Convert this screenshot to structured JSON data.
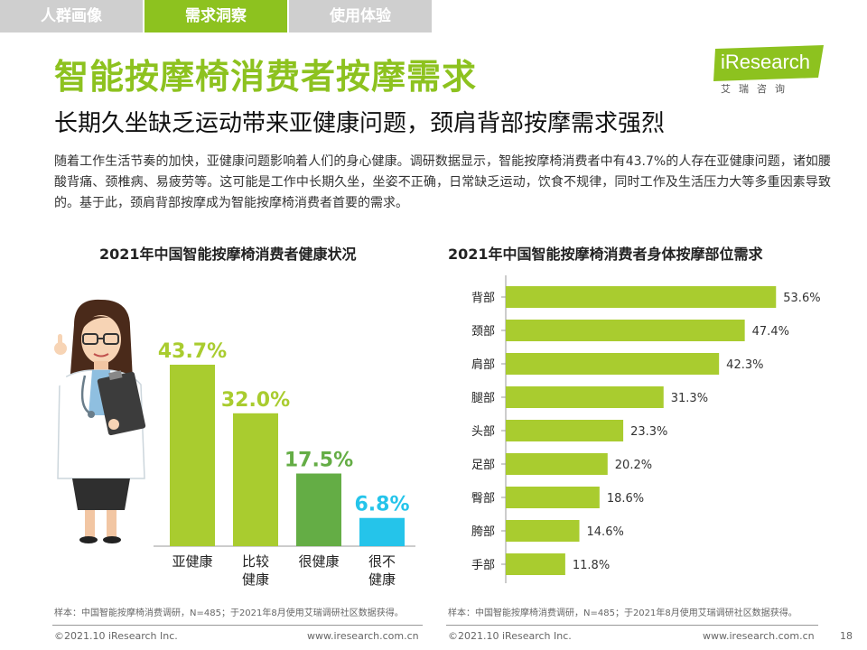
{
  "tabs": [
    {
      "label": "人群画像"
    },
    {
      "label": "需求洞察"
    },
    {
      "label": "使用体验"
    }
  ],
  "header": {
    "title": "智能按摩椅消费者按摩需求",
    "subtitle": "长期久坐缺乏运动带来亚健康问题，颈肩背部按摩需求强烈",
    "logo": "iResearch",
    "logo_sub": "艾瑞咨询"
  },
  "description": "随着工作生活节奏的加快，亚健康问题影响着人们的身心健康。调研数据显示，智能按摩椅消费者中有43.7%的人存在亚健康问题，诸如腰酸背痛、颈椎病、易疲劳等。这可能是工作中长期久坐，坐姿不正确，日常缺乏运动，饮食不规律，同时工作及生活压力大等多重因素导致的。基于此，颈肩背部按摩成为智能按摩椅消费者首要的需求。",
  "chart_data": [
    {
      "type": "bar",
      "title": "2021年中国智能按摩椅消费者健康状况",
      "categories": [
        "亚健康",
        "比较健康",
        "很健康",
        "很不健康"
      ],
      "category_lines": [
        [
          "亚健康"
        ],
        [
          "比较",
          "健康"
        ],
        [
          "很健康"
        ],
        [
          "很不",
          "健康"
        ]
      ],
      "values": [
        43.7,
        32.0,
        17.5,
        6.8
      ],
      "value_labels": [
        "43.7%",
        "32.0%",
        "17.5%",
        "6.8%"
      ],
      "colors": [
        "#a9cc2f",
        "#a9cc2f",
        "#64ad45",
        "#25c4ea"
      ],
      "ylim": [
        0,
        50
      ],
      "note": "样本：中国智能按摩椅消费调研，N=485；于2021年8月使用艾瑞调研社区数据获得。"
    },
    {
      "type": "bar",
      "orientation": "horizontal",
      "title": "2021年中国智能按摩椅消费者身体按摩部位需求",
      "categories": [
        "背部",
        "颈部",
        "肩部",
        "腿部",
        "头部",
        "足部",
        "臀部",
        "胯部",
        "手部"
      ],
      "values": [
        53.6,
        47.4,
        42.3,
        31.3,
        23.3,
        20.2,
        18.6,
        14.6,
        11.8
      ],
      "value_labels": [
        "53.6%",
        "47.4%",
        "42.3%",
        "31.3%",
        "23.3%",
        "20.2%",
        "18.6%",
        "14.6%",
        "11.8%"
      ],
      "color": "#a9cc2f",
      "xlim": [
        0,
        60
      ],
      "note": "样本：中国智能按摩椅消费调研，N=485；于2021年8月使用艾瑞调研社区数据获得。"
    }
  ],
  "footer": {
    "copyright": "©2021.10 iResearch Inc.",
    "website": "www.iresearch.com.cn",
    "page_number": "18"
  },
  "colors": {
    "accent": "#8dc21f",
    "tab_inactive": "#cfcfcf"
  }
}
